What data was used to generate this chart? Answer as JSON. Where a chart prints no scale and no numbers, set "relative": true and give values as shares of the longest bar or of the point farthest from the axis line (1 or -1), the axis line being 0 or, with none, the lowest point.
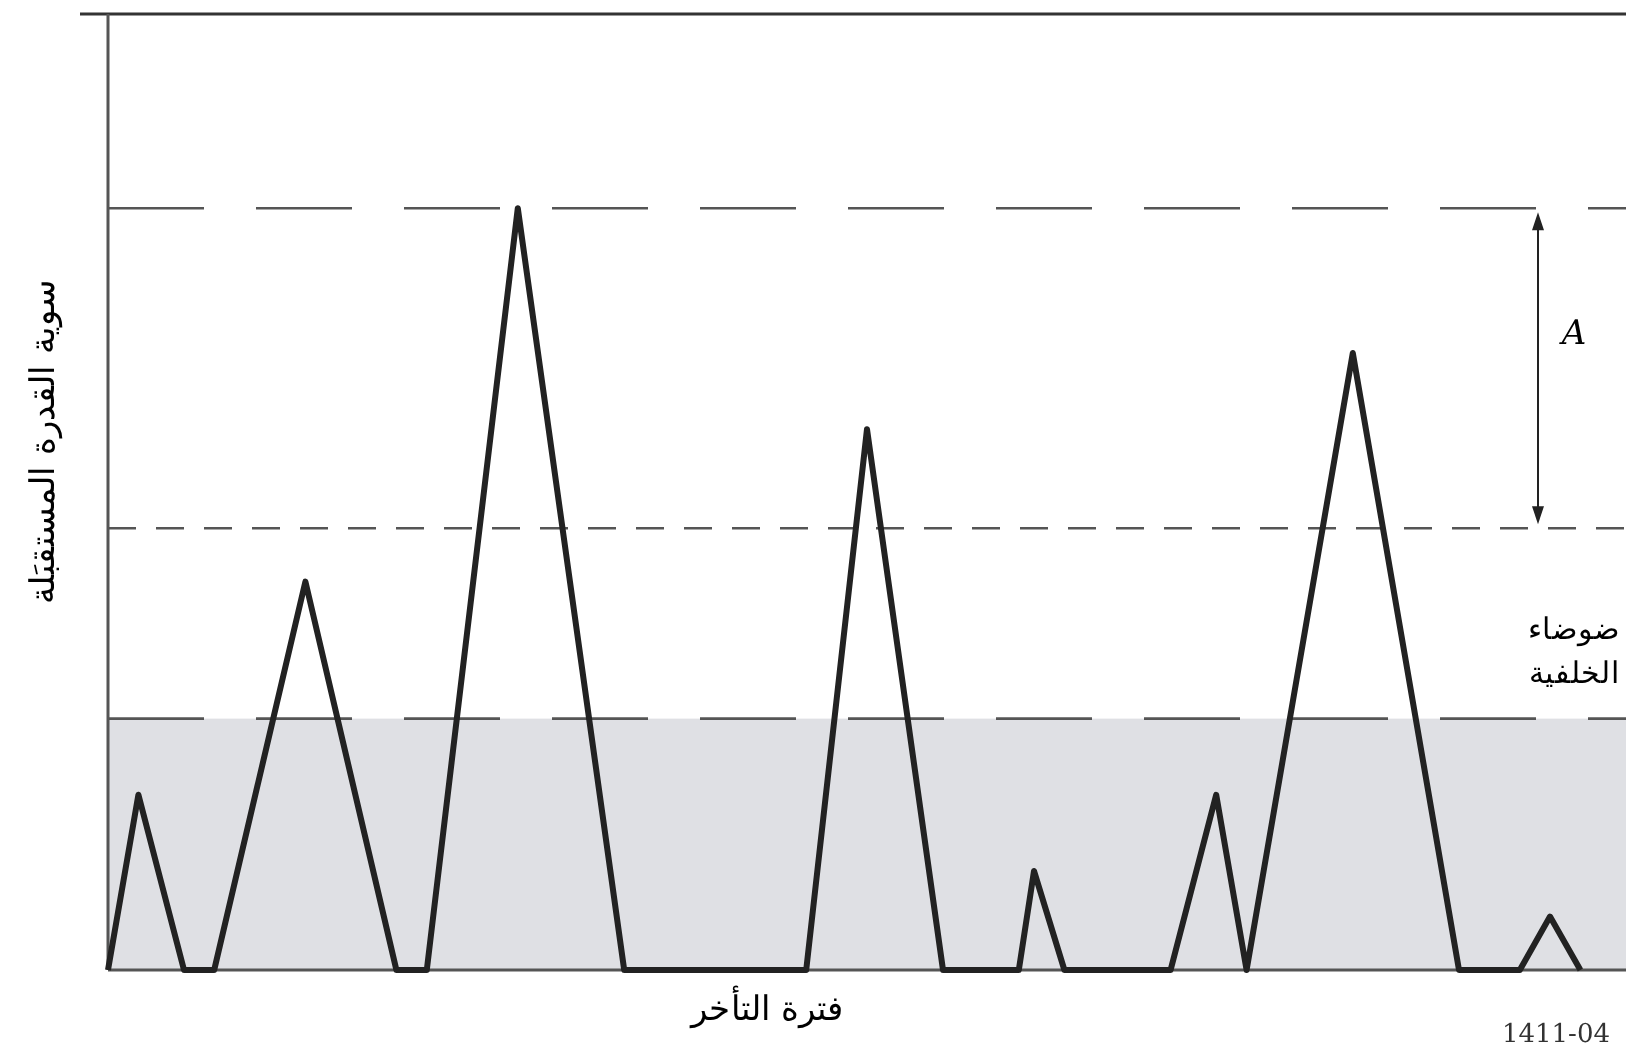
{
  "chart_data": {
    "type": "line",
    "relative": true,
    "xlabel": "فترة التأخر",
    "ylabel": "سوية القدرة المستقبَلة",
    "categories": [
      null,
      null,
      null,
      null,
      null,
      null,
      null,
      null,
      null,
      null,
      null,
      null,
      null,
      null,
      null,
      null,
      null,
      null,
      null,
      null,
      null,
      null,
      null,
      null,
      null,
      null,
      null,
      null,
      null,
      null,
      null,
      null,
      null,
      null,
      null,
      null,
      null,
      null,
      null,
      null,
      null,
      null,
      null,
      null,
      null,
      null,
      null,
      null,
      null,
      null,
      null,
      null,
      null,
      null,
      null,
      null,
      null,
      null,
      null,
      null,
      null,
      null,
      null,
      null,
      null,
      null,
      null,
      null,
      null,
      null,
      null,
      null,
      null,
      null,
      null,
      null,
      null,
      null,
      null,
      null,
      null,
      null,
      null,
      null,
      null,
      null,
      null,
      null,
      null,
      null,
      null,
      null,
      null,
      null,
      null,
      null,
      null,
      null,
      null,
      null,
      null
    ],
    "series": [
      {
        "color": "#222222",
        "values": [
          0,
          null,
          0.23,
          null,
          null,
          0,
          null,
          0,
          null,
          null,
          null,
          null,
          null,
          0.51,
          null,
          null,
          null,
          null,
          null,
          0,
          null,
          0,
          null,
          null,
          null,
          null,
          null,
          1.0,
          null,
          null,
          null,
          null,
          null,
          null,
          0,
          null,
          null,
          null,
          null,
          null,
          null,
          null,
          null,
          null,
          null,
          null,
          0,
          null,
          null,
          null,
          0.71,
          null,
          null,
          null,
          null,
          0,
          null,
          null,
          null,
          null,
          0,
          0.13,
          null,
          0,
          null,
          null,
          null,
          null,
          null,
          null,
          0,
          null,
          null,
          0.23,
          null,
          0,
          null,
          null,
          null,
          null,
          null,
          null,
          0.81,
          null,
          null,
          null,
          null,
          null,
          null,
          0,
          null,
          null,
          null,
          0,
          null,
          0.07,
          null,
          0,
          null,
          null,
          null
        ]
      }
    ],
    "ref_lines": [
      {
        "axis": "y",
        "value": 1.0,
        "color": "#555555",
        "line_style": "dashed"
      },
      {
        "axis": "y",
        "value": 0.58,
        "color": "#555555",
        "line_style": "dashed"
      },
      {
        "axis": "y",
        "value": 0.33,
        "color": "#555555",
        "line_style": "dashed"
      }
    ],
    "bands": [
      {
        "axis": "y",
        "from": 0,
        "to": 0.33,
        "label": "ضوضاء الخلفية",
        "color": "#dfe0e4"
      }
    ],
    "annotations": [
      "A",
      "1411-04"
    ],
    "line_style": "solid"
  }
}
